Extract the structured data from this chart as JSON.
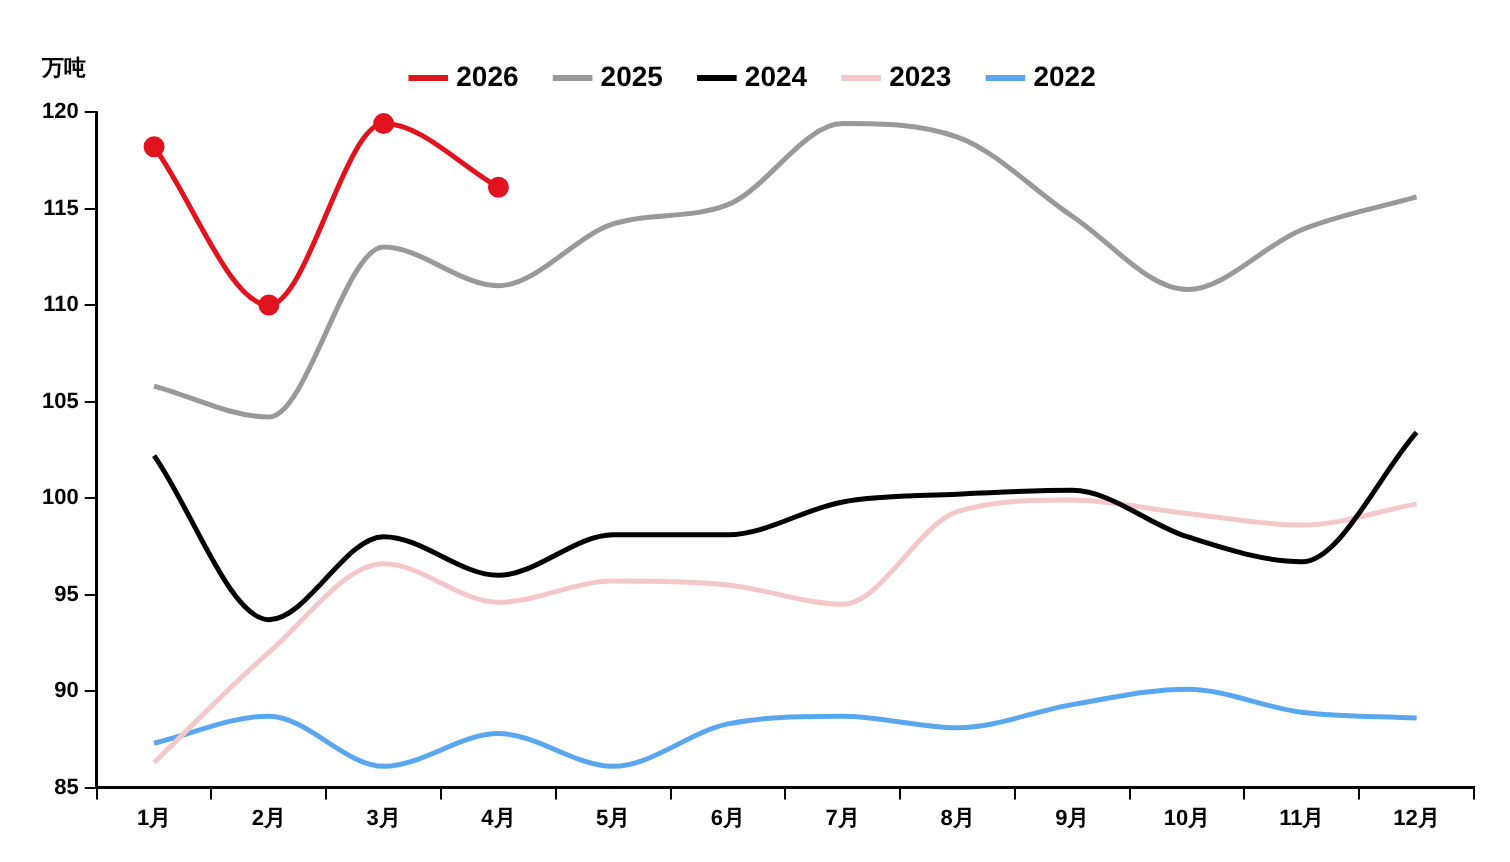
{
  "chart_data": {
    "type": "line",
    "ylabel": "万吨",
    "categories": [
      "1月",
      "2月",
      "3月",
      "4月",
      "5月",
      "6月",
      "7月",
      "8月",
      "9月",
      "10月",
      "11月",
      "12月"
    ],
    "series": [
      {
        "name": "2026",
        "color": "#e0141e",
        "marker": "circle",
        "values": [
          118.2,
          110,
          119.4,
          116.1,
          null,
          null,
          null,
          null,
          null,
          null,
          null,
          null
        ]
      },
      {
        "name": "2025",
        "color": "#999999",
        "values": [
          105.8,
          104.2,
          113,
          111,
          114.2,
          115.2,
          119.4,
          118.7,
          114.6,
          110.8,
          113.9,
          115.6
        ]
      },
      {
        "name": "2024",
        "color": "#000000",
        "values": [
          102.2,
          93.7,
          98,
          96,
          98.1,
          98.1,
          99.8,
          100.2,
          100.4,
          98,
          96.7,
          103.4
        ]
      },
      {
        "name": "2023",
        "color": "#f4c7c8",
        "values": [
          86.3,
          92,
          96.6,
          94.6,
          95.7,
          95.5,
          94.5,
          99.3,
          99.9,
          99.2,
          98.6,
          99.7
        ]
      },
      {
        "name": "2022",
        "color": "#5aa7f0",
        "values": [
          87.3,
          88.7,
          86.1,
          87.8,
          86.1,
          88.3,
          88.7,
          88.1,
          89.3,
          90.1,
          88.9,
          88.6
        ]
      }
    ],
    "ylim": [
      85,
      120
    ],
    "yticks": [
      85,
      90,
      95,
      100,
      105,
      110,
      115,
      120
    ],
    "grid": false,
    "legend": "top",
    "marker": "none",
    "line_style": "solid"
  }
}
